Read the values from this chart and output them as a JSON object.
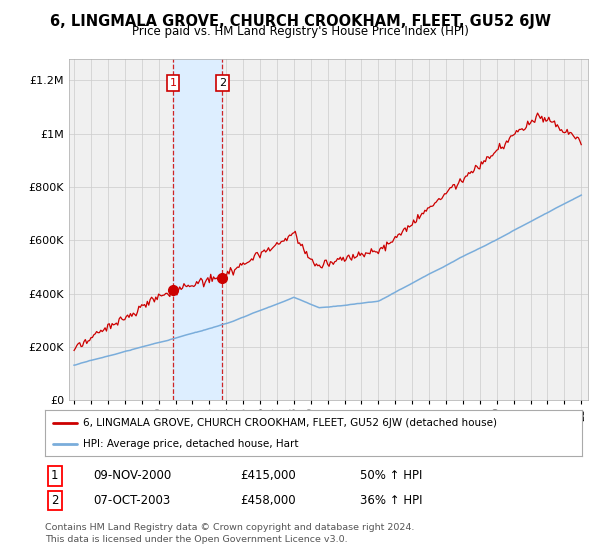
{
  "title": "6, LINGMALA GROVE, CHURCH CROOKHAM, FLEET, GU52 6JW",
  "subtitle": "Price paid vs. HM Land Registry's House Price Index (HPI)",
  "legend_line1": "6, LINGMALA GROVE, CHURCH CROOKHAM, FLEET, GU52 6JW (detached house)",
  "legend_line2": "HPI: Average price, detached house, Hart",
  "transaction1_label": "1",
  "transaction1_date": "09-NOV-2000",
  "transaction1_price": "£415,000",
  "transaction1_hpi": "50% ↑ HPI",
  "transaction2_label": "2",
  "transaction2_date": "07-OCT-2003",
  "transaction2_price": "£458,000",
  "transaction2_hpi": "36% ↑ HPI",
  "footnote1": "Contains HM Land Registry data © Crown copyright and database right 2024.",
  "footnote2": "This data is licensed under the Open Government Licence v3.0.",
  "red_color": "#cc0000",
  "blue_color": "#7aaddb",
  "shaded_color": "#ddeeff",
  "grid_color": "#cccccc",
  "background_color": "#ffffff",
  "plot_bg_color": "#f0f0f0"
}
